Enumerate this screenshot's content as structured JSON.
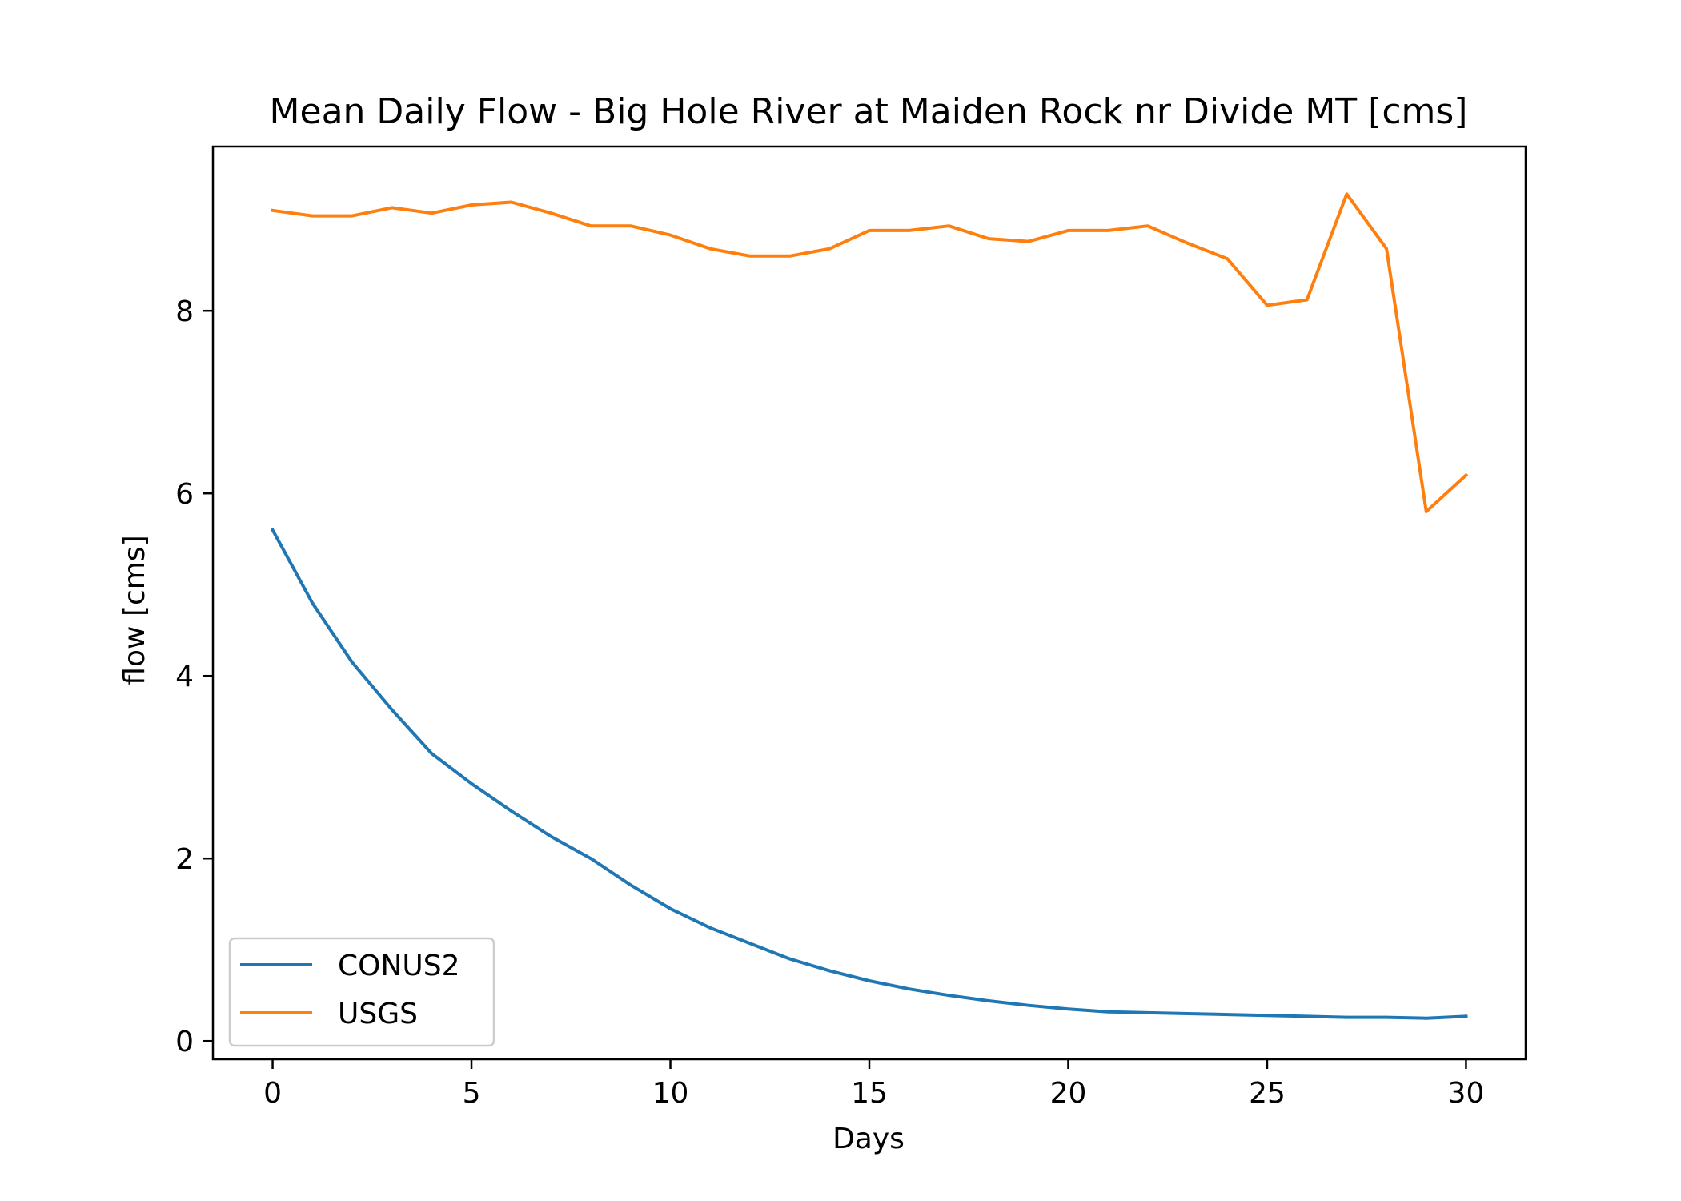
{
  "chart_data": {
    "type": "line",
    "title": "Mean Daily Flow - Big Hole River at Maiden Rock nr Divide MT [cms]",
    "xlabel": "Days",
    "ylabel": "flow [cms]",
    "xlim": [
      -1.5,
      31.5
    ],
    "ylim": [
      -0.2,
      9.8
    ],
    "xticks": [
      0,
      5,
      10,
      15,
      20,
      25,
      30
    ],
    "yticks": [
      0,
      2,
      4,
      6,
      8
    ],
    "grid": false,
    "legend": "lower-left",
    "x": [
      0,
      1,
      2,
      3,
      4,
      5,
      6,
      7,
      8,
      9,
      10,
      11,
      12,
      13,
      14,
      15,
      16,
      17,
      18,
      19,
      20,
      21,
      22,
      23,
      24,
      25,
      26,
      27,
      28,
      29,
      30
    ],
    "series": [
      {
        "name": "CONUS2",
        "color": "#1f77b4",
        "values": [
          5.6,
          4.8,
          4.15,
          3.63,
          3.15,
          2.82,
          2.52,
          2.24,
          2.0,
          1.71,
          1.45,
          1.24,
          1.07,
          0.9,
          0.77,
          0.66,
          0.57,
          0.5,
          0.44,
          0.39,
          0.35,
          0.32,
          0.31,
          0.3,
          0.29,
          0.28,
          0.27,
          0.26,
          0.26,
          0.25,
          0.27
        ]
      },
      {
        "name": "USGS",
        "color": "#ff7f0e",
        "values": [
          9.1,
          9.04,
          9.04,
          9.13,
          9.07,
          9.16,
          9.19,
          9.07,
          8.93,
          8.93,
          8.83,
          8.68,
          8.6,
          8.6,
          8.68,
          8.88,
          8.88,
          8.93,
          8.79,
          8.76,
          8.88,
          8.88,
          8.93,
          8.74,
          8.57,
          8.06,
          8.12,
          9.28,
          8.68,
          5.8,
          6.2
        ]
      }
    ]
  }
}
